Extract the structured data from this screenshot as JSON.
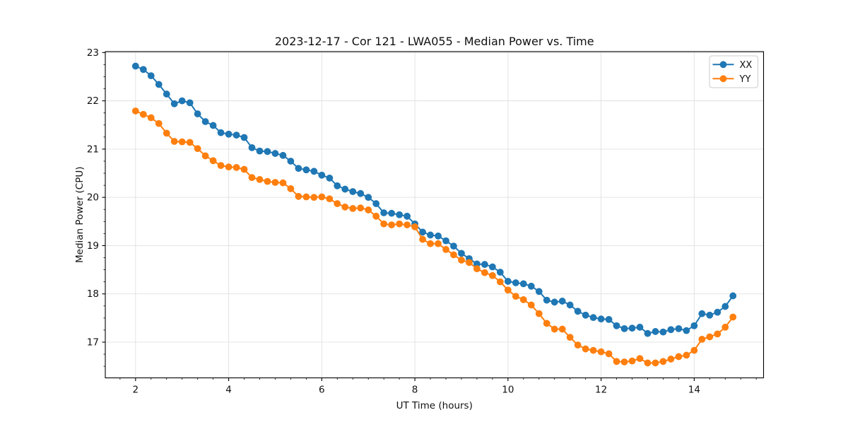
{
  "figure": {
    "title": "2023-12-17 - Cor 121 - LWA055 - Median Power vs. Time",
    "xlabel": "UT Time (hours)",
    "ylabel": "Median Power (CPU)"
  },
  "chart_data": {
    "type": "line",
    "title": "2023-12-17 - Cor 121 - LWA055 - Median Power vs. Time",
    "xlabel": "UT Time (hours)",
    "ylabel": "Median Power (CPU)",
    "xlim": [
      1.35,
      15.49
    ],
    "ylim": [
      16.26,
      23.02
    ],
    "xticks": [
      2,
      4,
      6,
      8,
      10,
      12,
      14
    ],
    "yticks": [
      17,
      18,
      19,
      20,
      21,
      22,
      23
    ],
    "x_minor_step": 0.3333333,
    "y_minor_step": 0.25,
    "grid": true,
    "grid_color": "#e0e0e0",
    "legend": {
      "position": "upper right",
      "entries": [
        "XX",
        "YY"
      ]
    },
    "x": [
      2.0,
      2.167,
      2.333,
      2.5,
      2.667,
      2.833,
      3.0,
      3.167,
      3.333,
      3.5,
      3.667,
      3.833,
      4.0,
      4.167,
      4.333,
      4.5,
      4.667,
      4.833,
      5.0,
      5.167,
      5.333,
      5.5,
      5.667,
      5.833,
      6.0,
      6.167,
      6.333,
      6.5,
      6.667,
      6.833,
      7.0,
      7.167,
      7.333,
      7.5,
      7.667,
      7.833,
      8.0,
      8.167,
      8.333,
      8.5,
      8.667,
      8.833,
      9.0,
      9.167,
      9.333,
      9.5,
      9.667,
      9.833,
      10.0,
      10.167,
      10.333,
      10.5,
      10.667,
      10.833,
      11.0,
      11.167,
      11.333,
      11.5,
      11.667,
      11.833,
      12.0,
      12.167,
      12.333,
      12.5,
      12.667,
      12.833,
      13.0,
      13.167,
      13.333,
      13.5,
      13.667,
      13.833,
      14.0,
      14.167,
      14.333,
      14.5,
      14.667,
      14.833
    ],
    "series": [
      {
        "name": "XX",
        "color": "#1f77b4",
        "marker": "circle",
        "values": [
          22.72,
          22.65,
          22.52,
          22.34,
          22.14,
          21.94,
          22.0,
          21.96,
          21.73,
          21.57,
          21.49,
          21.34,
          21.31,
          21.29,
          21.24,
          21.03,
          20.96,
          20.95,
          20.91,
          20.87,
          20.75,
          20.6,
          20.57,
          20.54,
          20.46,
          20.4,
          20.24,
          20.17,
          20.12,
          20.08,
          20.0,
          19.87,
          19.68,
          19.67,
          19.64,
          19.61,
          19.45,
          19.28,
          19.22,
          19.2,
          19.1,
          18.99,
          18.84,
          18.73,
          18.62,
          18.61,
          18.56,
          18.45,
          18.26,
          18.23,
          18.21,
          18.16,
          18.05,
          17.87,
          17.83,
          17.85,
          17.77,
          17.64,
          17.56,
          17.51,
          17.48,
          17.47,
          17.34,
          17.28,
          17.29,
          17.31,
          17.18,
          17.22,
          17.21,
          17.26,
          17.28,
          17.24,
          17.34,
          17.59,
          17.56,
          17.62,
          17.74,
          17.96
        ]
      },
      {
        "name": "YY",
        "color": "#ff7f0e",
        "marker": "circle",
        "values": [
          21.79,
          21.72,
          21.65,
          21.53,
          21.33,
          21.16,
          21.15,
          21.14,
          21.01,
          20.86,
          20.76,
          20.66,
          20.63,
          20.62,
          20.58,
          20.41,
          20.37,
          20.33,
          20.31,
          20.3,
          20.18,
          20.02,
          20.01,
          20.0,
          20.01,
          19.97,
          19.87,
          19.8,
          19.77,
          19.78,
          19.74,
          19.61,
          19.45,
          19.43,
          19.45,
          19.43,
          19.39,
          19.13,
          19.04,
          19.04,
          18.92,
          18.81,
          18.7,
          18.65,
          18.52,
          18.44,
          18.38,
          18.25,
          18.08,
          17.95,
          17.88,
          17.77,
          17.59,
          17.39,
          17.27,
          17.27,
          17.1,
          16.94,
          16.86,
          16.83,
          16.8,
          16.76,
          16.6,
          16.59,
          16.61,
          16.66,
          16.57,
          16.57,
          16.6,
          16.65,
          16.7,
          16.73,
          16.83,
          17.06,
          17.11,
          17.17,
          17.31,
          17.52
        ]
      }
    ]
  }
}
